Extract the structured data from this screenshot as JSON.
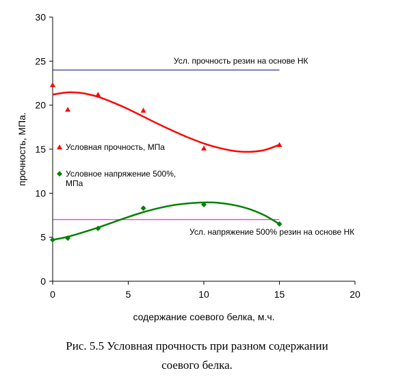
{
  "chart_data": {
    "type": "scatter",
    "xlabel": "содержание соевого белка, м.ч.",
    "ylabel": "прочность, МПа.",
    "xlim": [
      0,
      20
    ],
    "ylim": [
      0,
      30
    ],
    "xticks": [
      "0",
      "5",
      "10",
      "15",
      "20"
    ],
    "yticks": [
      "0",
      "5",
      "10",
      "15",
      "20",
      "25",
      "30"
    ],
    "grid": false,
    "legend_position": "middle-left",
    "series": [
      {
        "name": "Условная прочность, МПа",
        "marker": "triangle",
        "color": "#ff0000",
        "x": [
          0,
          1,
          3,
          6,
          10,
          15
        ],
        "y": [
          22.3,
          19.5,
          21.2,
          19.4,
          15.1,
          15.5
        ],
        "trend_x": [
          0,
          1,
          2,
          3,
          4,
          5,
          6,
          7,
          8,
          9,
          10,
          11,
          12,
          13,
          14,
          15
        ],
        "trend_y": [
          21.2,
          21.45,
          21.35,
          20.95,
          20.3,
          19.55,
          18.7,
          17.85,
          17.05,
          16.3,
          15.65,
          15.15,
          14.8,
          14.7,
          14.9,
          15.5
        ]
      },
      {
        "name": "Условное напряжение 500%, МПа",
        "name_lines": [
          "Условное напряжение 500%,",
          "МПа"
        ],
        "marker": "diamond",
        "color": "#008000",
        "x": [
          0,
          1,
          3,
          6,
          10,
          15
        ],
        "y": [
          4.7,
          4.9,
          6.0,
          8.3,
          8.7,
          6.5
        ],
        "trend_x": [
          0,
          1,
          2,
          3,
          4,
          5,
          6,
          7,
          8,
          9,
          10,
          11,
          12,
          13,
          14,
          15
        ],
        "trend_y": [
          4.7,
          5.05,
          5.55,
          6.1,
          6.7,
          7.3,
          7.85,
          8.3,
          8.65,
          8.85,
          8.95,
          8.9,
          8.65,
          8.2,
          7.5,
          6.5
        ]
      }
    ],
    "reference_lines": [
      {
        "label": "Усл. прочность резин на основе НК",
        "y": 24,
        "x_end": 15,
        "color": "#000080"
      },
      {
        "label": "Усл. напряжение 500% резин на основе НК",
        "y": 7,
        "x_end": 15,
        "color": "#cc00cc"
      }
    ]
  },
  "caption": {
    "line1": "Рис. 5.5 Условная прочность при разном содержании",
    "line2": "соевого белка."
  }
}
